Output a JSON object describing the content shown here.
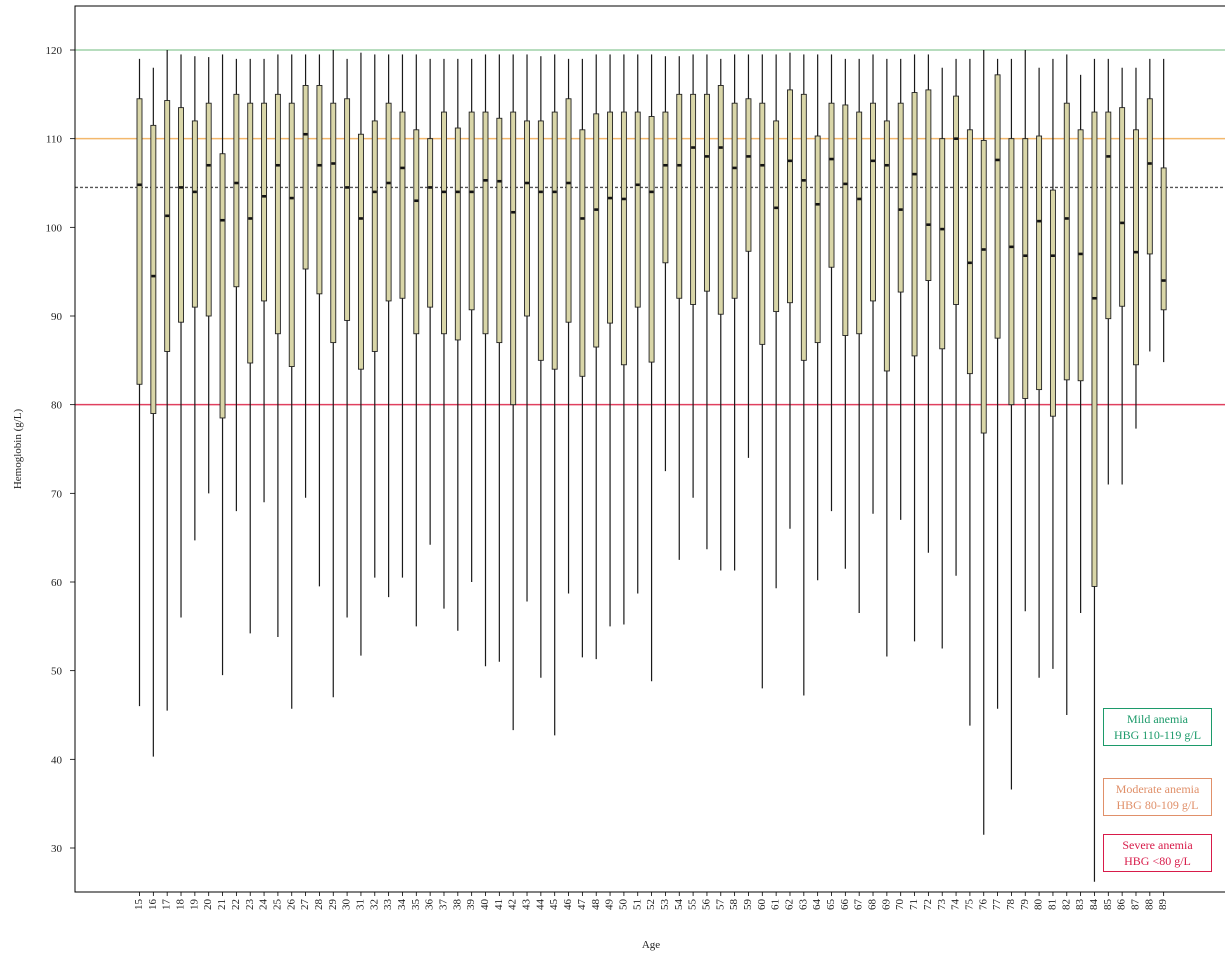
{
  "chart_data": {
    "type": "boxplot",
    "xlabel": "Age",
    "ylabel": "Hemoglobin (g/L)",
    "ylim": [
      25,
      125
    ],
    "yticks": [
      30,
      40,
      50,
      60,
      70,
      80,
      90,
      100,
      110,
      120
    ],
    "grid": false,
    "median_line": 104.5,
    "reference_lines": [
      {
        "name": "mild",
        "value": 120,
        "color": "#9fd2a8"
      },
      {
        "name": "moderate",
        "value": 110,
        "color": "#f3b86c"
      },
      {
        "name": "severe",
        "value": 80,
        "color": "#e0405f"
      }
    ],
    "box_fill": "#d9d6a8",
    "legend": [
      {
        "line1": "Mild anemia",
        "line2": "HBG 110-119 g/L",
        "color": "#1c9a6a"
      },
      {
        "line1": "Moderate anemia",
        "line2": "HBG 80-109 g/L",
        "color": "#e0906a"
      },
      {
        "line1": "Severe anemia",
        "line2": "HBG <80 g/L",
        "color": "#d81b4a"
      }
    ],
    "boxes": [
      {
        "age": "15",
        "min": 46,
        "q1": 82.3,
        "median": 104.8,
        "q3": 114.5,
        "max": 119
      },
      {
        "age": "16",
        "min": 40.3,
        "q1": 79,
        "median": 94.5,
        "q3": 111.5,
        "max": 118
      },
      {
        "age": "17",
        "min": 45.5,
        "q1": 86,
        "median": 101.3,
        "q3": 114.3,
        "max": 120
      },
      {
        "age": "18",
        "min": 56,
        "q1": 89.3,
        "median": 104.5,
        "q3": 113.5,
        "max": 119.5
      },
      {
        "age": "19",
        "min": 64.7,
        "q1": 91,
        "median": 104,
        "q3": 112,
        "max": 119.3
      },
      {
        "age": "20",
        "min": 70,
        "q1": 90,
        "median": 107,
        "q3": 114,
        "max": 119.2
      },
      {
        "age": "21",
        "min": 49.5,
        "q1": 78.5,
        "median": 100.8,
        "q3": 108.3,
        "max": 119.5
      },
      {
        "age": "22",
        "min": 68,
        "q1": 93.3,
        "median": 105,
        "q3": 115,
        "max": 119
      },
      {
        "age": "23",
        "min": 54.2,
        "q1": 84.7,
        "median": 101,
        "q3": 114,
        "max": 119
      },
      {
        "age": "24",
        "min": 69,
        "q1": 91.7,
        "median": 103.5,
        "q3": 114,
        "max": 119
      },
      {
        "age": "25",
        "min": 53.8,
        "q1": 88,
        "median": 107,
        "q3": 115,
        "max": 119.5
      },
      {
        "age": "26",
        "min": 45.7,
        "q1": 84.3,
        "median": 103.3,
        "q3": 114,
        "max": 119.5
      },
      {
        "age": "27",
        "min": 69.5,
        "q1": 95.3,
        "median": 110.5,
        "q3": 116,
        "max": 119.5
      },
      {
        "age": "28",
        "min": 59.5,
        "q1": 92.5,
        "median": 107,
        "q3": 116,
        "max": 119.5
      },
      {
        "age": "29",
        "min": 47,
        "q1": 87,
        "median": 107.2,
        "q3": 114,
        "max": 120
      },
      {
        "age": "30",
        "min": 56,
        "q1": 89.5,
        "median": 104.5,
        "q3": 114.5,
        "max": 119
      },
      {
        "age": "31",
        "min": 51.7,
        "q1": 84,
        "median": 101,
        "q3": 110.5,
        "max": 119.7
      },
      {
        "age": "32",
        "min": 60.5,
        "q1": 86,
        "median": 104,
        "q3": 112,
        "max": 119.5
      },
      {
        "age": "33",
        "min": 58.3,
        "q1": 91.7,
        "median": 105,
        "q3": 114,
        "max": 119.5
      },
      {
        "age": "34",
        "min": 60.5,
        "q1": 92,
        "median": 106.7,
        "q3": 113,
        "max": 119.5
      },
      {
        "age": "35",
        "min": 55,
        "q1": 88,
        "median": 103,
        "q3": 111,
        "max": 119.5
      },
      {
        "age": "36",
        "min": 64.2,
        "q1": 91,
        "median": 104.5,
        "q3": 110,
        "max": 119
      },
      {
        "age": "37",
        "min": 57,
        "q1": 88,
        "median": 104,
        "q3": 113,
        "max": 119
      },
      {
        "age": "38",
        "min": 54.5,
        "q1": 87.3,
        "median": 104,
        "q3": 111.2,
        "max": 119
      },
      {
        "age": "39",
        "min": 60,
        "q1": 90.7,
        "median": 104,
        "q3": 113,
        "max": 119
      },
      {
        "age": "40",
        "min": 50.5,
        "q1": 88,
        "median": 105.3,
        "q3": 113,
        "max": 119.5
      },
      {
        "age": "41",
        "min": 51,
        "q1": 87,
        "median": 105.2,
        "q3": 112.3,
        "max": 119.5
      },
      {
        "age": "42",
        "min": 43.3,
        "q1": 80,
        "median": 101.7,
        "q3": 113,
        "max": 119.5
      },
      {
        "age": "43",
        "min": 57.8,
        "q1": 90,
        "median": 105,
        "q3": 112,
        "max": 119.5
      },
      {
        "age": "44",
        "min": 49.2,
        "q1": 85,
        "median": 104,
        "q3": 112,
        "max": 119.3
      },
      {
        "age": "45",
        "min": 42.7,
        "q1": 84,
        "median": 104,
        "q3": 113,
        "max": 119.5
      },
      {
        "age": "46",
        "min": 58.7,
        "q1": 89.3,
        "median": 105,
        "q3": 114.5,
        "max": 119
      },
      {
        "age": "47",
        "min": 51.5,
        "q1": 83.2,
        "median": 101,
        "q3": 111,
        "max": 119
      },
      {
        "age": "48",
        "min": 51.3,
        "q1": 86.5,
        "median": 102,
        "q3": 112.8,
        "max": 119.5
      },
      {
        "age": "49",
        "min": 55,
        "q1": 89.2,
        "median": 103.3,
        "q3": 113,
        "max": 119.5
      },
      {
        "age": "50",
        "min": 55.2,
        "q1": 84.5,
        "median": 103.2,
        "q3": 113,
        "max": 119.5
      },
      {
        "age": "51",
        "min": 58.7,
        "q1": 91,
        "median": 104.8,
        "q3": 113,
        "max": 119.5
      },
      {
        "age": "52",
        "min": 48.8,
        "q1": 84.8,
        "median": 104,
        "q3": 112.5,
        "max": 119.5
      },
      {
        "age": "53",
        "min": 72.5,
        "q1": 96,
        "median": 107,
        "q3": 113,
        "max": 119.3
      },
      {
        "age": "54",
        "min": 62.5,
        "q1": 92,
        "median": 107,
        "q3": 115,
        "max": 119.3
      },
      {
        "age": "55",
        "min": 69.5,
        "q1": 91.3,
        "median": 109,
        "q3": 115,
        "max": 119.5
      },
      {
        "age": "56",
        "min": 63.7,
        "q1": 92.8,
        "median": 108,
        "q3": 115,
        "max": 119.5
      },
      {
        "age": "57",
        "min": 61.3,
        "q1": 90.2,
        "median": 109,
        "q3": 116,
        "max": 119
      },
      {
        "age": "58",
        "min": 61.3,
        "q1": 92,
        "median": 106.7,
        "q3": 114,
        "max": 119.5
      },
      {
        "age": "59",
        "min": 74,
        "q1": 97.3,
        "median": 108,
        "q3": 114.5,
        "max": 119.5
      },
      {
        "age": "60",
        "min": 48,
        "q1": 86.8,
        "median": 107,
        "q3": 114,
        "max": 119.5
      },
      {
        "age": "61",
        "min": 59.3,
        "q1": 90.5,
        "median": 102.2,
        "q3": 112,
        "max": 119.5
      },
      {
        "age": "62",
        "min": 66,
        "q1": 91.5,
        "median": 107.5,
        "q3": 115.5,
        "max": 119.7
      },
      {
        "age": "63",
        "min": 47.2,
        "q1": 85,
        "median": 105.3,
        "q3": 115,
        "max": 119.5
      },
      {
        "age": "64",
        "min": 60.2,
        "q1": 87,
        "median": 102.6,
        "q3": 110.3,
        "max": 119.5
      },
      {
        "age": "65",
        "min": 68,
        "q1": 95.5,
        "median": 107.7,
        "q3": 114,
        "max": 119.5
      },
      {
        "age": "66",
        "min": 61.5,
        "q1": 87.8,
        "median": 104.9,
        "q3": 113.8,
        "max": 119
      },
      {
        "age": "67",
        "min": 56.5,
        "q1": 88,
        "median": 103.2,
        "q3": 113,
        "max": 119
      },
      {
        "age": "68",
        "min": 67.7,
        "q1": 91.7,
        "median": 107.5,
        "q3": 114,
        "max": 119.5
      },
      {
        "age": "69",
        "min": 51.6,
        "q1": 83.8,
        "median": 107,
        "q3": 112,
        "max": 119
      },
      {
        "age": "70",
        "min": 67,
        "q1": 92.7,
        "median": 102,
        "q3": 114,
        "max": 119
      },
      {
        "age": "71",
        "min": 53.3,
        "q1": 85.5,
        "median": 106,
        "q3": 115.2,
        "max": 119.5
      },
      {
        "age": "72",
        "min": 63.3,
        "q1": 94,
        "median": 100.3,
        "q3": 115.5,
        "max": 119.5
      },
      {
        "age": "73",
        "min": 52.5,
        "q1": 86.3,
        "median": 99.8,
        "q3": 110,
        "max": 118
      },
      {
        "age": "74",
        "min": 60.7,
        "q1": 91.3,
        "median": 110,
        "q3": 114.8,
        "max": 119
      },
      {
        "age": "75",
        "min": 43.8,
        "q1": 83.5,
        "median": 96,
        "q3": 111,
        "max": 119
      },
      {
        "age": "76",
        "min": 31.5,
        "q1": 76.8,
        "median": 97.5,
        "q3": 109.8,
        "max": 120
      },
      {
        "age": "77",
        "min": 45.7,
        "q1": 87.5,
        "median": 107.6,
        "q3": 117.2,
        "max": 119
      },
      {
        "age": "78",
        "min": 36.6,
        "q1": 80,
        "median": 97.8,
        "q3": 110,
        "max": 119
      },
      {
        "age": "79",
        "min": 56.7,
        "q1": 80.7,
        "median": 96.8,
        "q3": 110,
        "max": 120
      },
      {
        "age": "80",
        "min": 49.2,
        "q1": 81.7,
        "median": 100.7,
        "q3": 110.3,
        "max": 118
      },
      {
        "age": "81",
        "min": 50.2,
        "q1": 78.7,
        "median": 96.8,
        "q3": 104.2,
        "max": 119
      },
      {
        "age": "82",
        "min": 45,
        "q1": 82.8,
        "median": 101,
        "q3": 114,
        "max": 119.5
      },
      {
        "age": "83",
        "min": 56.5,
        "q1": 82.7,
        "median": 97,
        "q3": 111,
        "max": 117.2
      },
      {
        "age": "84",
        "min": 26.2,
        "q1": 59.5,
        "median": 92,
        "q3": 113,
        "max": 119
      },
      {
        "age": "85",
        "min": 71,
        "q1": 89.7,
        "median": 108,
        "q3": 113,
        "max": 119
      },
      {
        "age": "86",
        "min": 71,
        "q1": 91.1,
        "median": 100.5,
        "q3": 113.5,
        "max": 118
      },
      {
        "age": "87",
        "min": 77.3,
        "q1": 84.5,
        "median": 97.2,
        "q3": 111,
        "max": 118
      },
      {
        "age": "88",
        "min": 86,
        "q1": 97,
        "median": 107.2,
        "q3": 114.5,
        "max": 119
      },
      {
        "age": "89",
        "min": 84.8,
        "q1": 90.7,
        "median": 94,
        "q3": 106.7,
        "max": 119
      }
    ]
  }
}
